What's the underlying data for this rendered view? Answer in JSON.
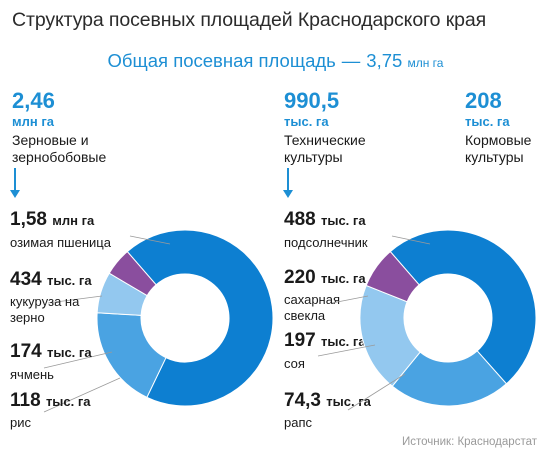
{
  "title": "Структура посевных площадей Краснодарского края",
  "subtitle": {
    "label": "Общая посевная площадь",
    "separator": "—",
    "value": "3,75",
    "unit": "млн га"
  },
  "categories": [
    {
      "value": "2,46",
      "unit": "млн га",
      "name": "Зерновые и зернобобовые"
    },
    {
      "value": "990,5",
      "unit": "тыс. га",
      "name": "Технические культуры"
    },
    {
      "value": "208",
      "unit": "тыс. га",
      "name": "Кормовые культуры"
    }
  ],
  "left_labels": [
    {
      "value": "1,58",
      "unit": "млн га",
      "label": "озимая пшеница"
    },
    {
      "value": "434",
      "unit": "тыс. га",
      "label": "кукуруза на зерно"
    },
    {
      "value": "174",
      "unit": "тыс. га",
      "label": "ячмень"
    },
    {
      "value": "118",
      "unit": "тыс. га",
      "label": "рис"
    }
  ],
  "right_labels": [
    {
      "value": "488",
      "unit": "тыс. га",
      "label": "подсолнечник"
    },
    {
      "value": "220",
      "unit": "тыс. га",
      "label": "сахарная свекла"
    },
    {
      "value": "197",
      "unit": "тыс. га",
      "label": "соя"
    },
    {
      "value": "74,3",
      "unit": "тыс. га",
      "label": "рапс"
    }
  ],
  "source": "Источник: Краснодарстат",
  "colors": {
    "accent": "#1d8fd4",
    "dark_blue": "#0d7fd1",
    "mid_blue": "#4aa3e2",
    "light_blue": "#93c8ef",
    "purple": "#8a4e9e",
    "leader": "#9a9a9a"
  },
  "chart_data": [
    {
      "type": "pie",
      "subtype": "donut",
      "series_unit": "тыс. га",
      "slices": [
        {
          "label": "озимая пшеница",
          "value": 1580,
          "color": "#0d7fd1"
        },
        {
          "label": "кукуруза на зерно",
          "value": 434,
          "color": "#4aa3e2"
        },
        {
          "label": "ячмень",
          "value": 174,
          "color": "#93c8ef"
        },
        {
          "label": "рис",
          "value": 118,
          "color": "#8a4e9e"
        }
      ],
      "total": 2460
    },
    {
      "type": "pie",
      "subtype": "donut",
      "series_unit": "тыс. га",
      "slices": [
        {
          "label": "подсолнечник",
          "value": 488,
          "color": "#0d7fd1"
        },
        {
          "label": "сахарная свекла",
          "value": 220,
          "color": "#4aa3e2"
        },
        {
          "label": "соя",
          "value": 197,
          "color": "#93c8ef"
        },
        {
          "label": "рапс",
          "value": 74.3,
          "color": "#8a4e9e"
        }
      ],
      "total": 990.5
    }
  ]
}
